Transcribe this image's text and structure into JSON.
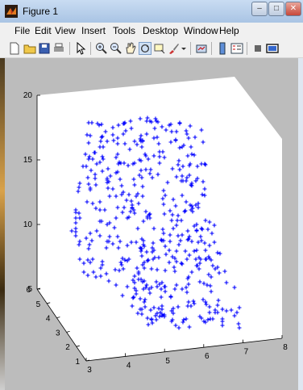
{
  "window": {
    "title": "Figure 1"
  },
  "title_buttons": [
    {
      "name": "minimize-button",
      "glyph": "–"
    },
    {
      "name": "maximize-button",
      "glyph": "□"
    },
    {
      "name": "close-button",
      "glyph": "✕"
    }
  ],
  "menu": [
    "File",
    "Edit",
    "View",
    "Insert",
    "Tools",
    "Desktop",
    "Window",
    "Help"
  ],
  "toolbar_icons": [
    "new-figure-icon",
    "open-file-icon",
    "save-icon",
    "print-icon",
    "arrow-icon",
    "zoom-in-icon",
    "zoom-out-icon",
    "pan-icon",
    "rotate-3d-icon",
    "data-cursor-icon",
    "brush-icon",
    "link-plot-icon",
    "colorbar-icon",
    "legend-icon",
    "hide-plot-tools-icon",
    "show-plot-tools-icon"
  ],
  "chart_data": {
    "type": "scatter",
    "marker": "+",
    "marker_color": "#0000ff",
    "title": "",
    "xlabel": "",
    "ylabel": "",
    "zlabel": "",
    "x_ticks": [
      "3",
      "4",
      "5",
      "6",
      "7",
      "8"
    ],
    "y_ticks": [
      "1",
      "2",
      "3",
      "4",
      "5",
      "6"
    ],
    "z_ticks": [
      "5",
      "10",
      "15",
      "20"
    ],
    "xlim": [
      3,
      8
    ],
    "ylim": [
      1,
      6
    ],
    "zlim": [
      5,
      20
    ],
    "grid": false,
    "description_of_cloud": []
  }
}
